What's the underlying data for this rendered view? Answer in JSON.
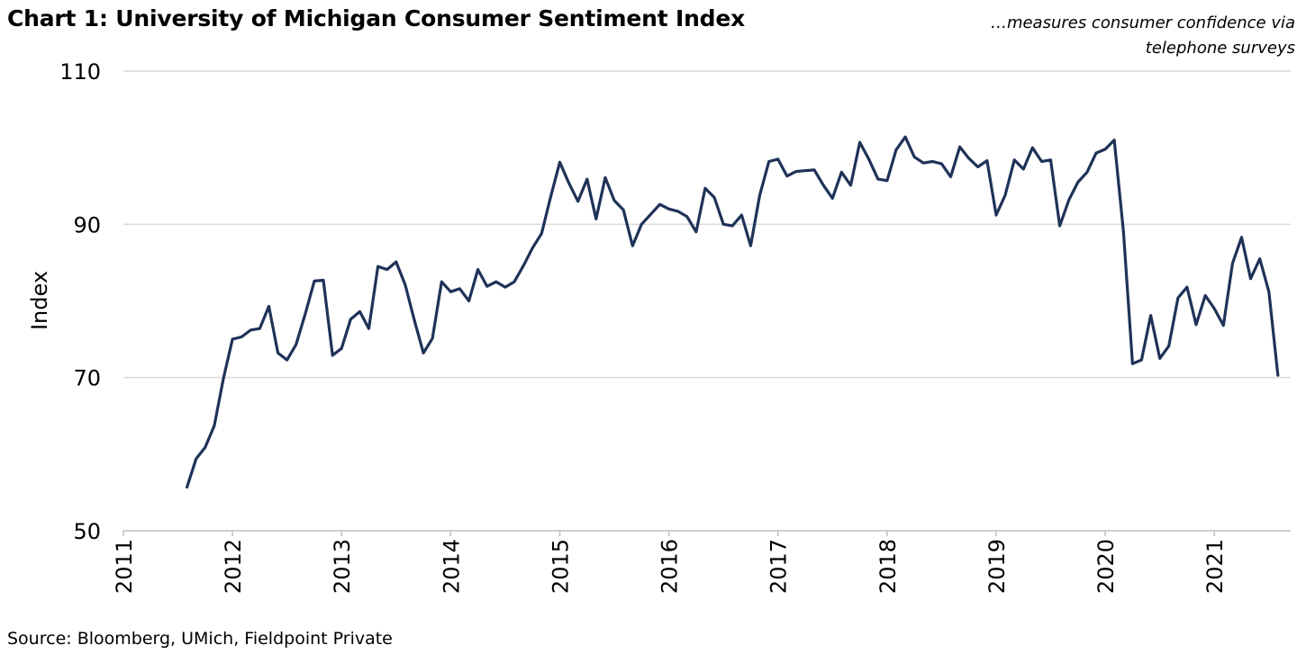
{
  "header": {
    "title": "Chart 1: University of Michigan Consumer Sentiment Index",
    "subtitle_line1": "…measures consumer confidence via",
    "subtitle_line2": "telephone surveys"
  },
  "footer": {
    "source": "Source: Bloomberg, UMich, Fieldpoint Private"
  },
  "chart_data": {
    "type": "line",
    "title": "Chart 1: University of Michigan Consumer Sentiment Index",
    "xlabel": "",
    "ylabel": "Index",
    "xlim": [
      2011,
      2021.7
    ],
    "ylim": [
      50,
      110
    ],
    "yticks": [
      50,
      70,
      90,
      110
    ],
    "xticks": [
      2011,
      2012,
      2013,
      2014,
      2015,
      2016,
      2017,
      2018,
      2019,
      2020,
      2021
    ],
    "grid": "horizontal",
    "legend": "none",
    "line_color": "#1f3258",
    "series": [
      {
        "x": [
          2011.583,
          2011.667,
          2011.75,
          2011.833,
          2011.917,
          2012.0,
          2012.083,
          2012.167,
          2012.25,
          2012.333,
          2012.417,
          2012.5,
          2012.583,
          2012.667,
          2012.75,
          2012.833,
          2012.917,
          2013.0,
          2013.083,
          2013.167,
          2013.25,
          2013.333,
          2013.417,
          2013.5,
          2013.583,
          2013.667,
          2013.75,
          2013.833,
          2013.917,
          2014.0,
          2014.083,
          2014.167,
          2014.25,
          2014.333,
          2014.417,
          2014.5,
          2014.583,
          2014.667,
          2014.75,
          2014.833,
          2014.917,
          2015.0,
          2015.083,
          2015.167,
          2015.25,
          2015.333,
          2015.417,
          2015.5,
          2015.583,
          2015.667,
          2015.75,
          2015.833,
          2015.917,
          2016.0,
          2016.083,
          2016.167,
          2016.25,
          2016.333,
          2016.417,
          2016.5,
          2016.583,
          2016.667,
          2016.75,
          2016.833,
          2016.917,
          2017.0,
          2017.083,
          2017.167,
          2017.25,
          2017.333,
          2017.417,
          2017.5,
          2017.583,
          2017.667,
          2017.75,
          2017.833,
          2017.917,
          2018.0,
          2018.083,
          2018.167,
          2018.25,
          2018.333,
          2018.417,
          2018.5,
          2018.583,
          2018.667,
          2018.75,
          2018.833,
          2018.917,
          2019.0,
          2019.083,
          2019.167,
          2019.25,
          2019.333,
          2019.417,
          2019.5,
          2019.583,
          2019.667,
          2019.75,
          2019.833,
          2019.917,
          2020.0,
          2020.083,
          2020.167,
          2020.25,
          2020.333,
          2020.417,
          2020.5,
          2020.583,
          2020.667,
          2020.75,
          2020.833,
          2020.917,
          2021.0,
          2021.083,
          2021.167,
          2021.25,
          2021.333,
          2021.417,
          2021.5,
          2021.583
        ],
        "y": [
          55.7,
          59.4,
          60.9,
          63.7,
          69.9,
          75.0,
          75.3,
          76.2,
          76.4,
          79.3,
          73.2,
          72.3,
          74.3,
          78.3,
          82.6,
          82.7,
          72.9,
          73.8,
          77.6,
          78.6,
          76.4,
          84.5,
          84.1,
          85.1,
          82.1,
          77.5,
          73.2,
          75.1,
          82.5,
          81.2,
          81.6,
          80.0,
          84.1,
          81.9,
          82.5,
          81.8,
          82.5,
          84.6,
          86.9,
          88.8,
          93.6,
          98.1,
          95.4,
          93.0,
          95.9,
          90.7,
          96.1,
          93.1,
          91.9,
          87.2,
          90.0,
          91.3,
          92.6,
          92.0,
          91.7,
          91.0,
          89.0,
          94.7,
          93.5,
          90.0,
          89.8,
          91.2,
          87.2,
          93.8,
          98.2,
          98.5,
          96.3,
          96.9,
          97.0,
          97.1,
          95.1,
          93.4,
          96.8,
          95.1,
          100.7,
          98.5,
          95.9,
          95.7,
          99.7,
          101.4,
          98.8,
          98.0,
          98.2,
          97.9,
          96.2,
          100.1,
          98.6,
          97.5,
          98.3,
          91.2,
          93.8,
          98.4,
          97.2,
          100.0,
          98.2,
          98.4,
          89.8,
          93.2,
          95.5,
          96.8,
          99.3,
          99.8,
          101.0,
          89.1,
          71.8,
          72.3,
          78.1,
          72.5,
          74.1,
          80.4,
          81.8,
          76.9,
          80.7,
          79.0,
          76.8,
          84.9,
          88.3,
          82.9,
          85.5,
          81.2,
          70.3
        ]
      }
    ]
  }
}
